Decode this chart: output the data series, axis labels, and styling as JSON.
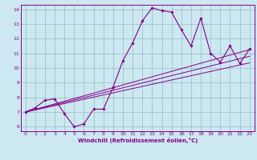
{
  "title": "",
  "xlabel": "Windchill (Refroidissement éolien,°C)",
  "bg_color": "#cce8f0",
  "line_color": "#880088",
  "grid_color": "#99bbcc",
  "xlim": [
    -0.5,
    23.5
  ],
  "ylim": [
    5.7,
    14.3
  ],
  "xticks": [
    0,
    1,
    2,
    3,
    4,
    5,
    6,
    7,
    8,
    9,
    10,
    11,
    12,
    13,
    14,
    15,
    16,
    17,
    18,
    19,
    20,
    21,
    22,
    23
  ],
  "yticks": [
    6,
    7,
    8,
    9,
    10,
    11,
    12,
    13,
    14
  ],
  "line1_x": [
    0,
    1,
    2,
    3,
    4,
    5,
    6,
    7,
    8,
    9,
    10,
    11,
    12,
    13,
    14,
    15,
    16,
    17,
    18,
    19,
    20,
    21,
    22,
    23
  ],
  "line1_y": [
    7.0,
    7.3,
    7.8,
    7.9,
    6.9,
    6.0,
    6.2,
    7.2,
    7.2,
    8.7,
    10.5,
    11.7,
    13.2,
    14.1,
    13.9,
    13.8,
    12.6,
    11.5,
    13.4,
    11.0,
    10.4,
    11.5,
    10.3,
    11.3
  ],
  "line2_x": [
    0,
    23
  ],
  "line2_y": [
    7.0,
    10.35
  ],
  "line3_x": [
    0,
    23
  ],
  "line3_y": [
    7.0,
    11.25
  ],
  "line4_x": [
    0,
    23
  ],
  "line4_y": [
    7.0,
    10.8
  ],
  "spine_color": "#880088",
  "tick_labelsize": 4.5,
  "xlabel_fontsize": 5.0
}
